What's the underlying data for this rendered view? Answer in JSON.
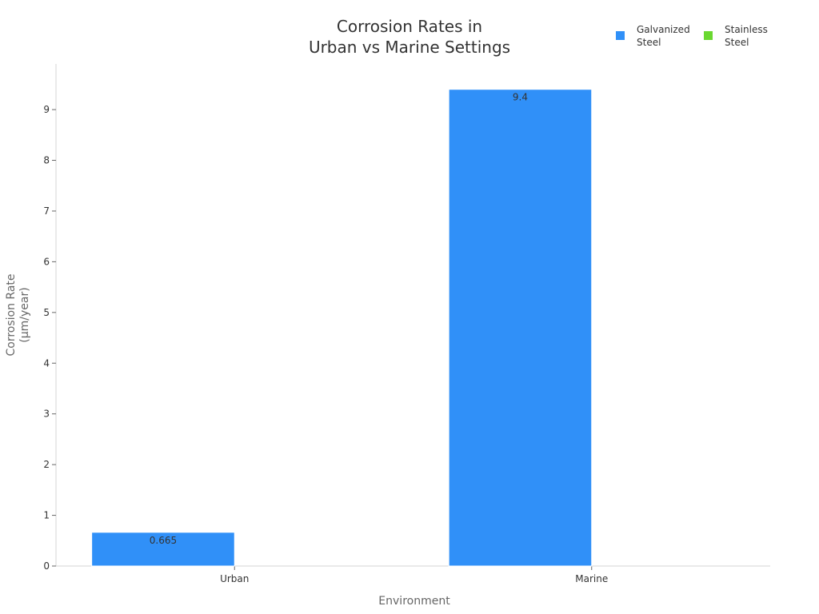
{
  "chart_data": {
    "type": "bar",
    "title_lines": [
      "Corrosion Rates in",
      "Urban vs Marine Settings"
    ],
    "xlabel": "Environment",
    "ylabel_lines": [
      "Corrosion Rate",
      "(μm/year)"
    ],
    "categories": [
      "Urban",
      "Marine"
    ],
    "series": [
      {
        "name_lines": [
          "Galvanized",
          "Steel"
        ],
        "color": "#3090f8",
        "values": [
          0.665,
          9.4
        ],
        "labels": [
          "0.665",
          "9.4"
        ]
      },
      {
        "name_lines": [
          "Stainless",
          "Steel"
        ],
        "color": "#6ad830",
        "values": [
          0,
          0
        ],
        "labels": [
          "",
          ""
        ]
      }
    ],
    "ylim": [
      0,
      9.9
    ],
    "yticks": [
      0,
      1,
      2,
      3,
      4,
      5,
      6,
      7,
      8,
      9
    ],
    "grid": false,
    "legend_position": "top-right"
  }
}
